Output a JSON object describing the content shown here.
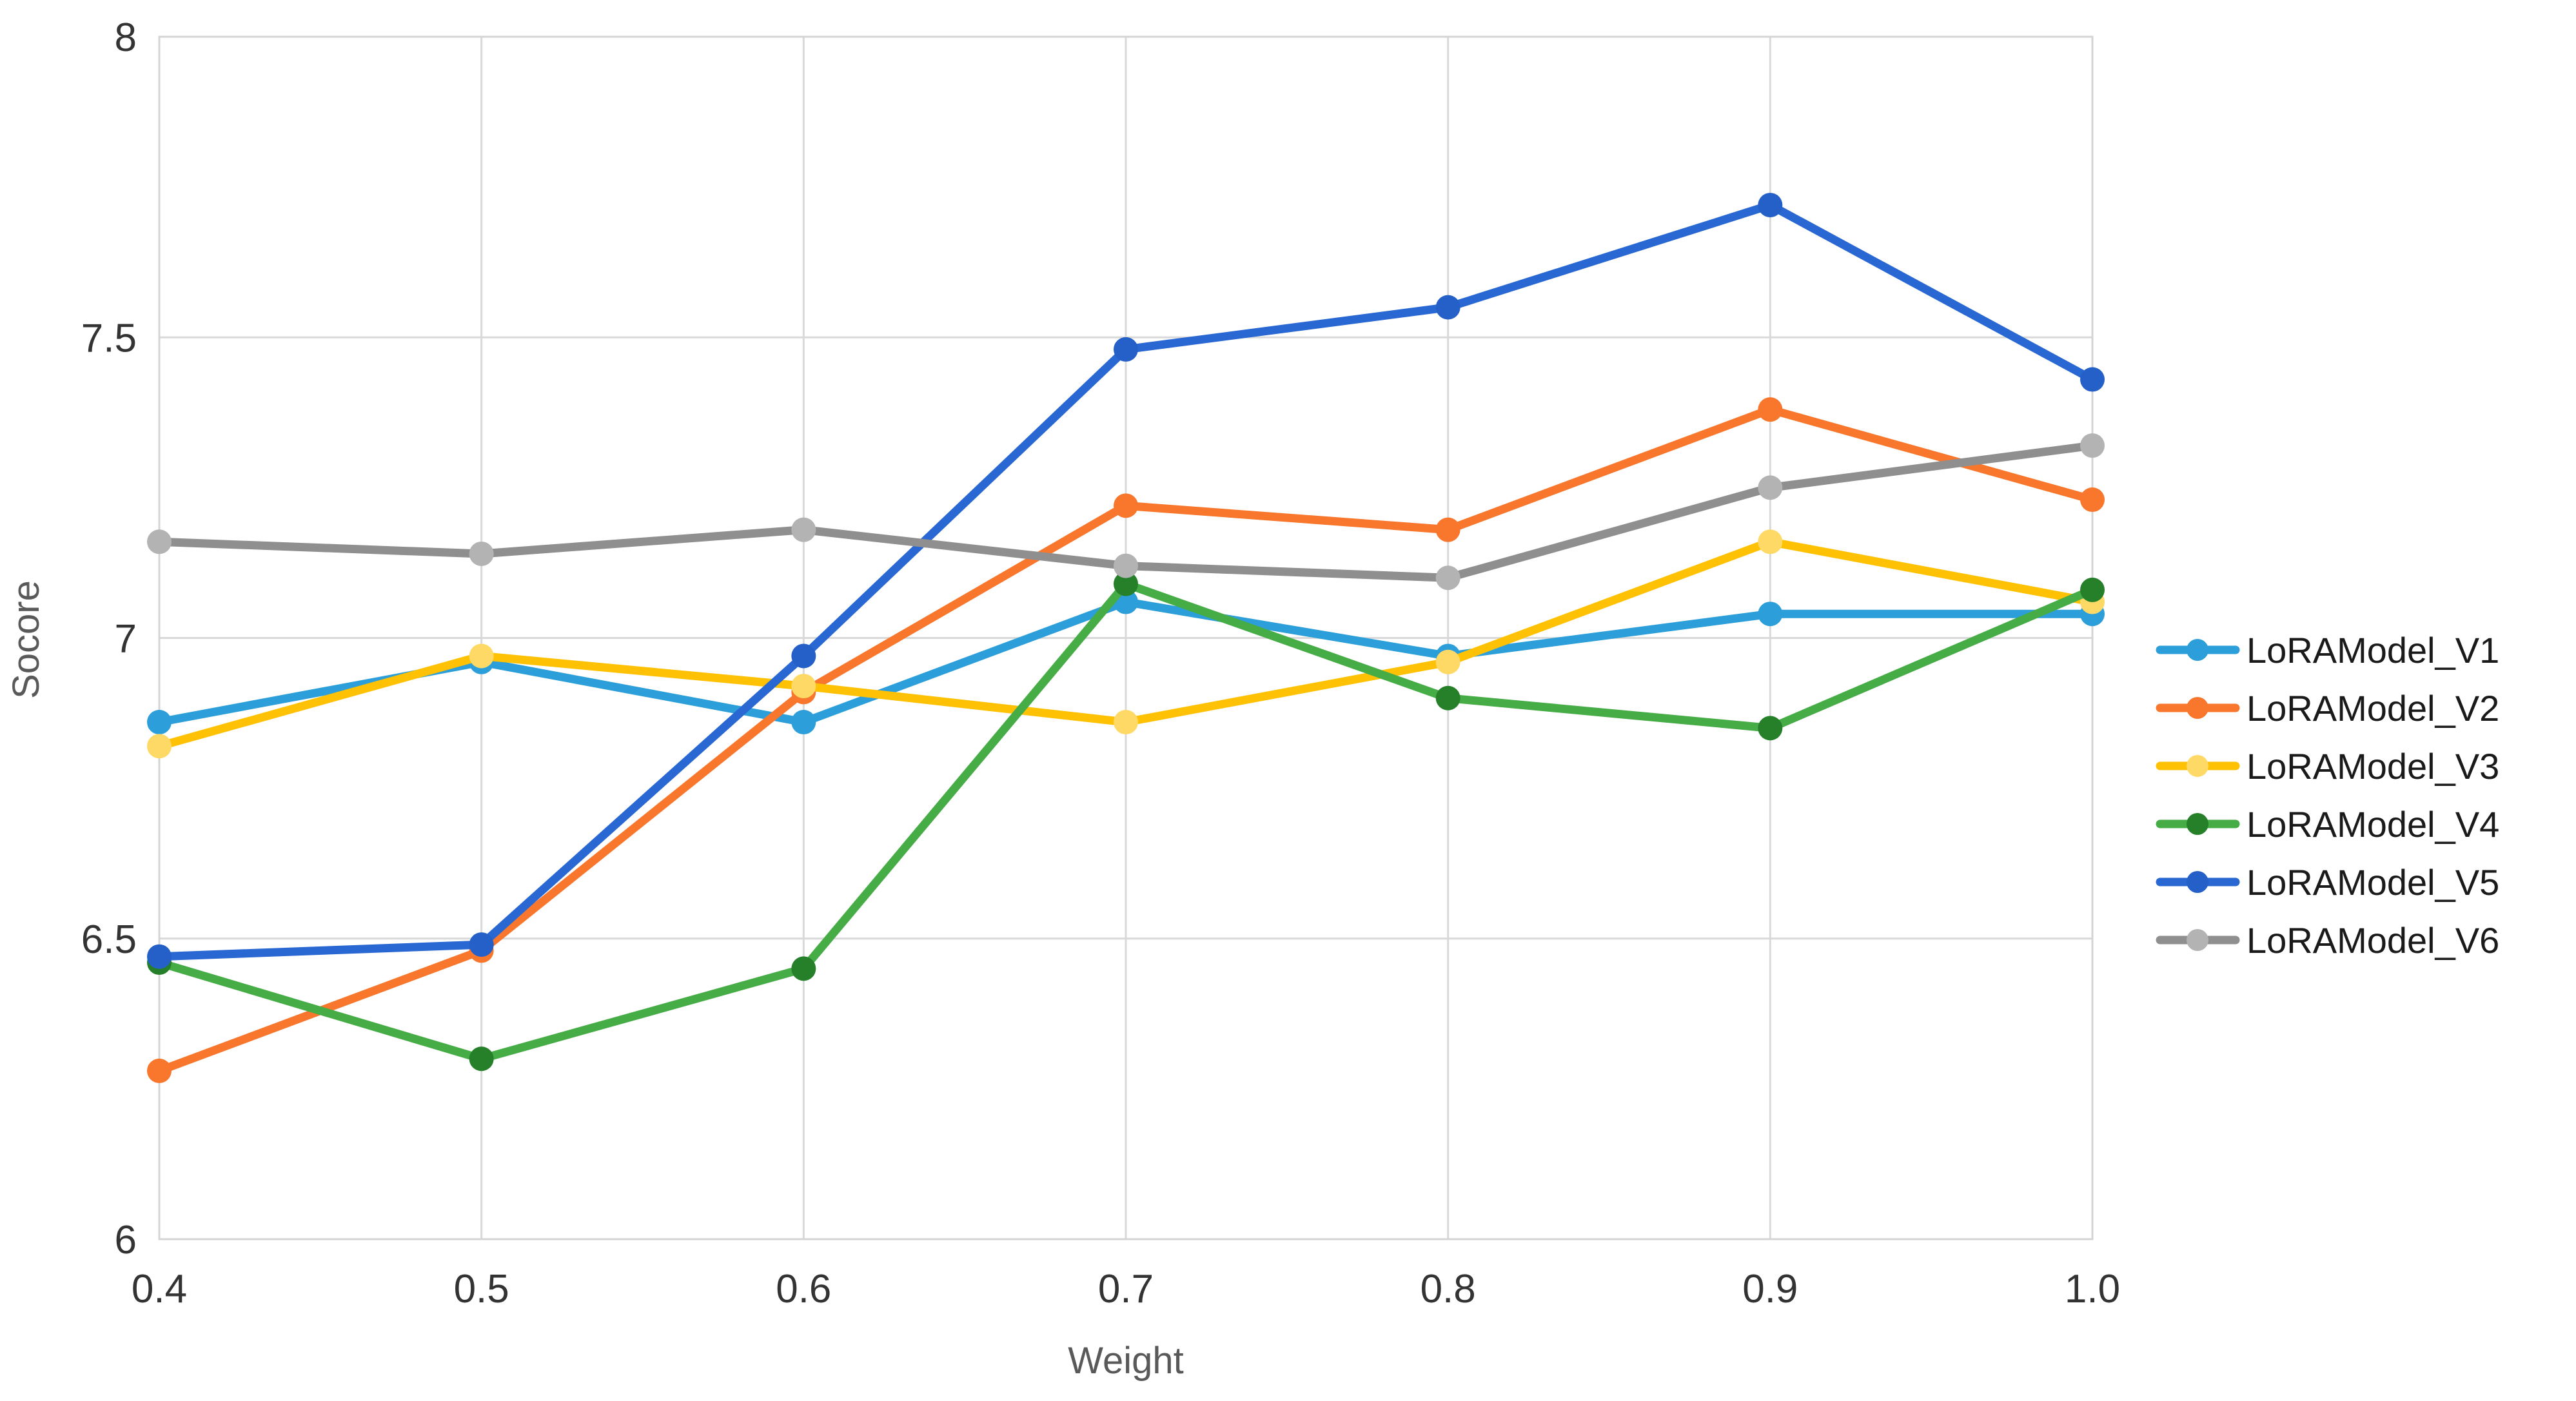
{
  "page": {
    "background": "#ffffff"
  },
  "chart_data": {
    "type": "line",
    "title": "",
    "xlabel": "Weight",
    "ylabel": "Socore",
    "xlim": [
      0.4,
      1.0
    ],
    "ylim": [
      6,
      8
    ],
    "x": [
      0.4,
      0.5,
      0.6,
      0.7,
      0.8,
      0.9,
      1.0
    ],
    "x_tick_labels": [
      "0.4",
      "0.5",
      "0.6",
      "0.7",
      "0.8",
      "0.9",
      "1.0"
    ],
    "y_ticks": [
      6,
      6.5,
      7,
      7.5,
      8
    ],
    "y_tick_labels": [
      "6",
      "6.5",
      "7",
      "7.5",
      "8"
    ],
    "grid": true,
    "legend_position": "right",
    "series": [
      {
        "name": "LoRAModel_V1",
        "color": "#2C9FDA",
        "marker_color": "#2C9FDA",
        "values": [
          6.86,
          6.96,
          6.86,
          7.06,
          6.97,
          7.04,
          7.04
        ]
      },
      {
        "name": "LoRAModel_V2",
        "color": "#F8772D",
        "marker_color": "#F8772D",
        "values": [
          6.28,
          6.48,
          6.91,
          7.22,
          7.18,
          7.38,
          7.23
        ]
      },
      {
        "name": "LoRAModel_V3",
        "color": "#FFC103",
        "marker_color": "#FFD966",
        "values": [
          6.82,
          6.97,
          6.92,
          6.86,
          6.96,
          7.16,
          7.06
        ]
      },
      {
        "name": "LoRAModel_V4",
        "color": "#46AC46",
        "marker_color": "#26802A",
        "values": [
          6.46,
          6.3,
          6.45,
          7.09,
          6.9,
          6.85,
          7.08
        ]
      },
      {
        "name": "LoRAModel_V5",
        "color": "#2968D2",
        "marker_color": "#2460C8",
        "values": [
          6.47,
          6.49,
          6.97,
          7.48,
          7.55,
          7.72,
          7.43
        ]
      },
      {
        "name": "LoRAModel_V6",
        "color": "#8F8F8F",
        "marker_color": "#B3B3B3",
        "values": [
          7.16,
          7.14,
          7.18,
          7.12,
          7.1,
          7.25,
          7.32
        ]
      }
    ],
    "styles": {
      "grid_color": "#D9D9D9",
      "border_color": "#D4D4D4",
      "tick_color": "#333333",
      "axis_title_color": "#595959",
      "legend_text_color": "#1A1A1A"
    }
  }
}
